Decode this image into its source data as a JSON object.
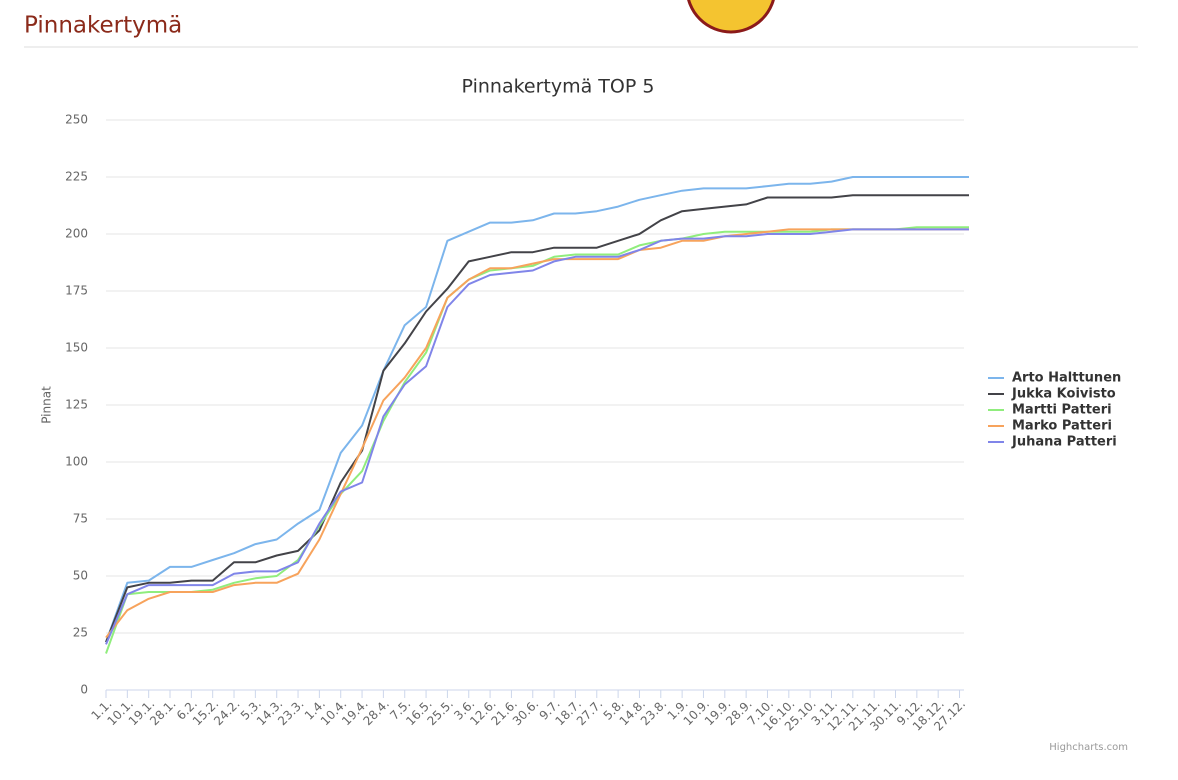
{
  "header": {
    "title": "Pinnakertymä"
  },
  "chart_data": {
    "type": "line",
    "title": "Pinnakertymä TOP 5",
    "y_label": "Pinnat",
    "credits": "Highcharts.com",
    "x": [
      0,
      9,
      18,
      27,
      36,
      45,
      54,
      63,
      72,
      81,
      90,
      99,
      108,
      117,
      126,
      135,
      144,
      153,
      162,
      171,
      180,
      189,
      198,
      207,
      216,
      225,
      234,
      243,
      252,
      261,
      270,
      279,
      288,
      297,
      306,
      315,
      324,
      333,
      342,
      351,
      360,
      364
    ],
    "xlim": [
      0,
      364
    ],
    "xticks": [
      {
        "value": 0,
        "label": "1.1."
      },
      {
        "value": 9,
        "label": "10.1."
      },
      {
        "value": 18,
        "label": "19.1."
      },
      {
        "value": 27,
        "label": "28.1."
      },
      {
        "value": 36,
        "label": "6.2."
      },
      {
        "value": 45,
        "label": "15.2."
      },
      {
        "value": 54,
        "label": "24.2."
      },
      {
        "value": 63,
        "label": "5.3."
      },
      {
        "value": 72,
        "label": "14.3."
      },
      {
        "value": 81,
        "label": "23.3."
      },
      {
        "value": 90,
        "label": "1.4."
      },
      {
        "value": 99,
        "label": "10.4."
      },
      {
        "value": 108,
        "label": "19.4."
      },
      {
        "value": 117,
        "label": "28.4."
      },
      {
        "value": 126,
        "label": "7.5."
      },
      {
        "value": 135,
        "label": "16.5."
      },
      {
        "value": 144,
        "label": "25.5."
      },
      {
        "value": 153,
        "label": "3.6."
      },
      {
        "value": 162,
        "label": "12.6."
      },
      {
        "value": 171,
        "label": "21.6."
      },
      {
        "value": 180,
        "label": "30.6."
      },
      {
        "value": 189,
        "label": "9.7."
      },
      {
        "value": 198,
        "label": "18.7."
      },
      {
        "value": 207,
        "label": "27.7."
      },
      {
        "value": 216,
        "label": "5.8."
      },
      {
        "value": 225,
        "label": "14.8."
      },
      {
        "value": 234,
        "label": "23.8."
      },
      {
        "value": 243,
        "label": "1.9."
      },
      {
        "value": 252,
        "label": "10.9."
      },
      {
        "value": 261,
        "label": "19.9."
      },
      {
        "value": 270,
        "label": "28.9."
      },
      {
        "value": 279,
        "label": "7.10."
      },
      {
        "value": 288,
        "label": "16.10."
      },
      {
        "value": 297,
        "label": "25.10."
      },
      {
        "value": 306,
        "label": "3.11."
      },
      {
        "value": 315,
        "label": "12.11."
      },
      {
        "value": 324,
        "label": "21.11."
      },
      {
        "value": 333,
        "label": "30.11."
      },
      {
        "value": 342,
        "label": "9.12."
      },
      {
        "value": 351,
        "label": "18.12."
      },
      {
        "value": 360,
        "label": "27.12."
      }
    ],
    "ylim": [
      0,
      250
    ],
    "yticks": [
      0,
      25,
      50,
      75,
      100,
      125,
      150,
      175,
      200,
      225,
      250
    ],
    "grid": true,
    "legend": "right",
    "series": [
      {
        "name": "Arto Halttunen",
        "color": "#7cb5ec",
        "values": [
          21,
          47,
          48,
          54,
          54,
          57,
          60,
          64,
          66,
          73,
          79,
          104,
          116,
          140,
          160,
          168,
          197,
          201,
          205,
          205,
          206,
          209,
          209,
          210,
          212,
          215,
          217,
          219,
          220,
          220,
          220,
          221,
          222,
          222,
          223,
          225,
          225,
          225,
          225,
          225,
          225,
          225
        ]
      },
      {
        "name": "Jukka Koivisto",
        "color": "#434348",
        "values": [
          21,
          45,
          47,
          47,
          48,
          48,
          56,
          56,
          59,
          61,
          70,
          91,
          105,
          140,
          152,
          166,
          176,
          188,
          190,
          192,
          192,
          194,
          194,
          194,
          197,
          200,
          206,
          210,
          211,
          212,
          213,
          216,
          216,
          216,
          216,
          217,
          217,
          217,
          217,
          217,
          217,
          217
        ]
      },
      {
        "name": "Martti Patteri",
        "color": "#90ed7d",
        "values": [
          16,
          42,
          43,
          43,
          43,
          44,
          47,
          49,
          50,
          57,
          72,
          86,
          96,
          118,
          135,
          148,
          172,
          180,
          184,
          185,
          186,
          190,
          191,
          191,
          191,
          195,
          197,
          198,
          200,
          201,
          201,
          201,
          201,
          201,
          202,
          202,
          202,
          202,
          203,
          203,
          203,
          203
        ]
      },
      {
        "name": "Marko Patteri",
        "color": "#f7a35c",
        "values": [
          23,
          35,
          40,
          43,
          43,
          43,
          46,
          47,
          47,
          51,
          66,
          86,
          106,
          127,
          137,
          150,
          172,
          180,
          185,
          185,
          187,
          189,
          189,
          189,
          189,
          193,
          194,
          197,
          197,
          199,
          200,
          201,
          202,
          202,
          202,
          202,
          202,
          202,
          202,
          202,
          202,
          202
        ]
      },
      {
        "name": "Juhana Patteri",
        "color": "#8085e9",
        "values": [
          20,
          42,
          46,
          46,
          46,
          46,
          51,
          52,
          52,
          56,
          73,
          87,
          91,
          120,
          134,
          142,
          168,
          178,
          182,
          183,
          184,
          188,
          190,
          190,
          190,
          193,
          197,
          198,
          198,
          199,
          199,
          200,
          200,
          200,
          201,
          202,
          202,
          202,
          202,
          202,
          202,
          202
        ]
      }
    ]
  }
}
